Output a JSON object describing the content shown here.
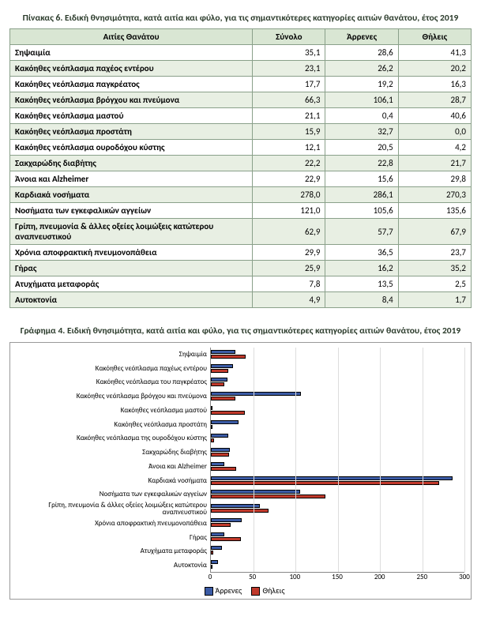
{
  "table": {
    "title": "Πίνακας 6. Ειδική θνησιμότητα, κατά αιτία και φύλο, για τις σημαντικότερες κατηγορίες αιτιών θανάτου, έτος 2019",
    "headers": [
      "Αιτίες Θανάτου",
      "Σύνολο",
      "Άρρενες",
      "Θήλεις"
    ],
    "header_bg": "#d9e6d3",
    "row_even_bg": "#e8efe3",
    "row_odd_bg": "#ffffff",
    "border_color": "#8aa08a",
    "rows": [
      {
        "label": "Σηψαιμία",
        "total": "35,1",
        "male": "28,6",
        "female": "41,3"
      },
      {
        "label": "Κακόηθες νεόπλασμα παχέος εντέρου",
        "total": "23,1",
        "male": "26,2",
        "female": "20,2"
      },
      {
        "label": "Κακόηθες νεόπλασμα παγκρέατος",
        "total": "17,7",
        "male": "19,2",
        "female": "16,3"
      },
      {
        "label": "Κακόηθες νεόπλασμα βρόγχου και πνεύμονα",
        "total": "66,3",
        "male": "106,1",
        "female": "28,7"
      },
      {
        "label": "Κακόηθες νεόπλασμα μαστού",
        "total": "21,1",
        "male": "0,4",
        "female": "40,6"
      },
      {
        "label": "Κακόηθες νεόπλασμα προστάτη",
        "total": "15,9",
        "male": "32,7",
        "female": "0,0"
      },
      {
        "label": "Κακόηθες νεόπλασμα ουροδόχου κύστης",
        "total": "12,1",
        "male": "20,5",
        "female": "4,2"
      },
      {
        "label": "Σακχαρώδης διαβήτης",
        "total": "22,2",
        "male": "22,8",
        "female": "21,7"
      },
      {
        "label": "Άνοια και Alzheimer",
        "total": "22,9",
        "male": "15,6",
        "female": "29,8"
      },
      {
        "label": "Καρδιακά νοσήματα",
        "total": "278,0",
        "male": "286,1",
        "female": "270,3"
      },
      {
        "label": "Νοσήματα των εγκεφαλικών αγγείων",
        "total": "121,0",
        "male": "105,6",
        "female": "135,6"
      },
      {
        "label": "Γρίπη, πνευμονία & άλλες οξείες λοιμώξεις κατώτερου αναπνευστικού",
        "total": "62,9",
        "male": "57,7",
        "female": "67,9"
      },
      {
        "label": "Χρόνια αποφρακτική πνευμονοπάθεια",
        "total": "29,9",
        "male": "36,5",
        "female": "23,7"
      },
      {
        "label": "Γήρας",
        "total": "25,9",
        "male": "16,2",
        "female": "35,2"
      },
      {
        "label": "Ατυχήματα μεταφοράς",
        "total": "7,8",
        "male": "13,5",
        "female": "2,5"
      },
      {
        "label": "Αυτοκτονία",
        "total": "4,9",
        "male": "8,4",
        "female": "1,7"
      }
    ]
  },
  "chart": {
    "title": "Γράφημα 4. Ειδική θνησιμότητα, κατά αιτία και φύλο, για τις σημαντικότερες κατηγορίες αιτιών θανάτου, έτος 2019",
    "type": "bar",
    "x_max": 300,
    "x_tick_step": 50,
    "male_color": "#3b5ba5",
    "female_color": "#c0392b",
    "grid_color": "#dddddd",
    "axis_color": "#888888",
    "legend": {
      "male": "Άρρενες",
      "female": "Θήλεις"
    },
    "series": [
      {
        "label": "Σηψαιμία",
        "male": 28.6,
        "female": 41.3
      },
      {
        "label": "Κακόηθες νεόπλασμα παχέως εντέρου",
        "male": 26.2,
        "female": 20.2
      },
      {
        "label": "Κακόηθες νεόπλασμα του παγκρέατος",
        "male": 19.2,
        "female": 16.3
      },
      {
        "label": "Κακόηθες νεόπλασμα βρόγχου και πνεύμονα",
        "male": 106.1,
        "female": 28.7
      },
      {
        "label": "Κακόηθες νεόπλασμα μαστού",
        "male": 0.4,
        "female": 40.6
      },
      {
        "label": "Κακόηθες νεόπλασμα προστάτη",
        "male": 32.7,
        "female": 0.0
      },
      {
        "label": "Κακόηθες νεόπλασμα της ουροδόχου κύστης",
        "male": 20.5,
        "female": 4.2
      },
      {
        "label": "Σακχαρώδης διαβήτης",
        "male": 22.8,
        "female": 21.7
      },
      {
        "label": "Άνοια και Alzheimer",
        "male": 15.6,
        "female": 29.8
      },
      {
        "label": "Καρδιακά νοσήματα",
        "male": 286.1,
        "female": 270.3
      },
      {
        "label": "Νοσήματα των εγκεφαλικών αγγείων",
        "male": 105.6,
        "female": 135.6
      },
      {
        "label": "Γρίπη, πνευμονία & άλλες οξείες λοιμώξεις κατώτερου αναπνευστικού",
        "male": 57.7,
        "female": 67.9
      },
      {
        "label": "Χρόνια αποφρακτική πνευμονοπάθεια",
        "male": 36.5,
        "female": 23.7
      },
      {
        "label": "Γήρας",
        "male": 16.2,
        "female": 35.2
      },
      {
        "label": "Ατυχήματα μεταφοράς",
        "male": 13.5,
        "female": 2.5
      },
      {
        "label": "Αυτοκτονία",
        "male": 8.4,
        "female": 1.7
      }
    ]
  }
}
